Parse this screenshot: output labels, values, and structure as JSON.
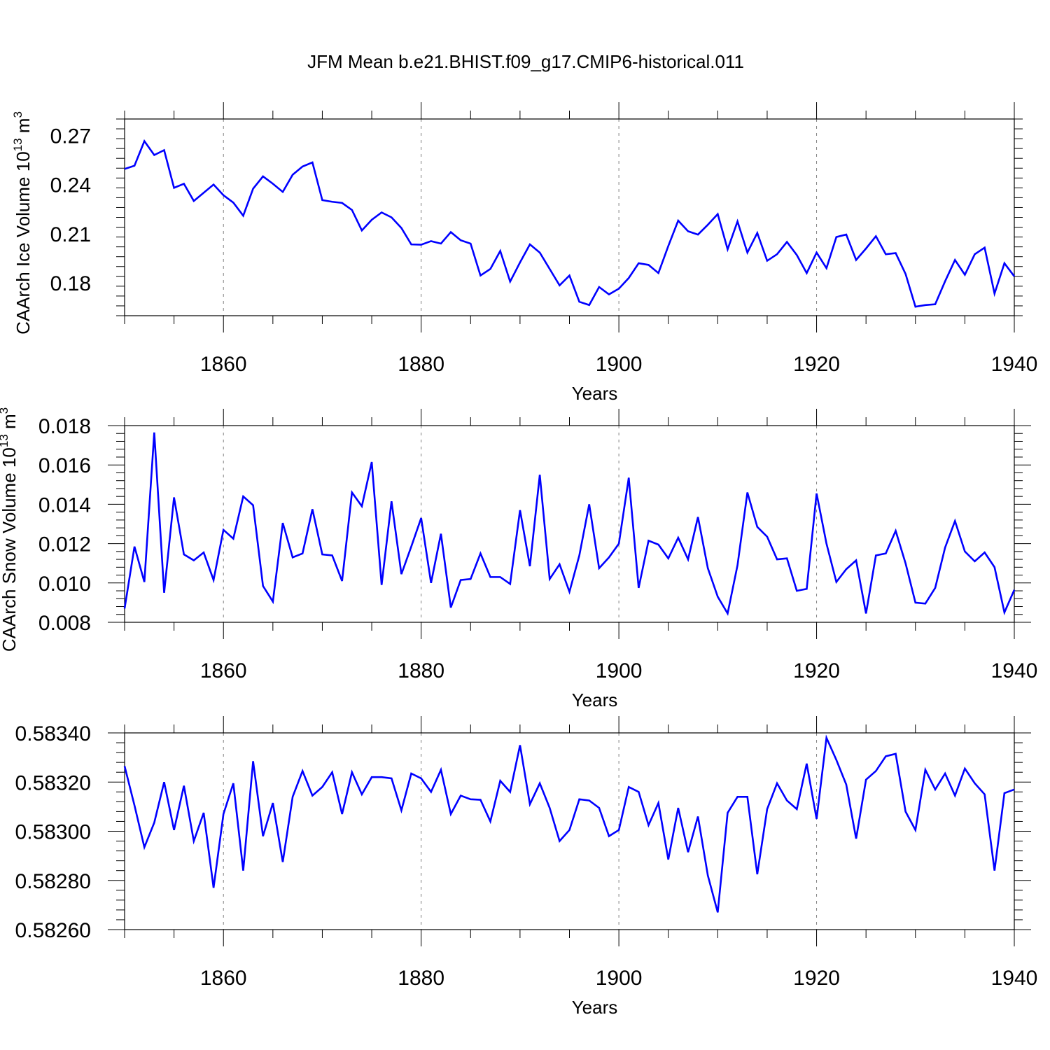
{
  "title": "JFM Mean b.e21.BHIST.f09_g17.CMIP6-historical.011",
  "colors": {
    "series": "#0000ff",
    "axis": "#000000",
    "grid": "#808080"
  },
  "chart_data": [
    {
      "type": "line",
      "name": "ice-volume",
      "xlabel": "Years",
      "ylabel": "CAArch Ice Volume 10",
      "ylabel_exp": "13",
      "ylabel_unit": " m",
      "ylabel_unit_exp": "3",
      "xlim": [
        1850,
        1940
      ],
      "ylim": [
        0.16,
        0.28
      ],
      "xticks": [
        1860,
        1880,
        1900,
        1920,
        1940
      ],
      "xtick_labels": [
        "1860",
        "1880",
        "1900",
        "1920",
        "1940"
      ],
      "yticks": [
        0.18,
        0.21,
        0.24,
        0.27
      ],
      "ytick_labels": [
        "0.18",
        "0.21",
        "0.24",
        "0.27"
      ],
      "grid": "vertical dashed at major x ticks",
      "x_start": 1850,
      "values": [
        0.2495,
        0.2515,
        0.2665,
        0.258,
        0.261,
        0.238,
        0.2405,
        0.23,
        0.235,
        0.24,
        0.2335,
        0.229,
        0.221,
        0.2375,
        0.245,
        0.2405,
        0.2355,
        0.246,
        0.251,
        0.2535,
        0.2305,
        0.2295,
        0.2288,
        0.2245,
        0.212,
        0.2185,
        0.223,
        0.22,
        0.2135,
        0.2035,
        0.2033,
        0.2055,
        0.204,
        0.211,
        0.206,
        0.204,
        0.1845,
        0.1885,
        0.1995,
        0.1808,
        0.1925,
        0.2035,
        0.1985,
        0.1885,
        0.1785,
        0.1845,
        0.1685,
        0.1665,
        0.1775,
        0.173,
        0.1765,
        0.183,
        0.192,
        0.191,
        0.186,
        0.2025,
        0.218,
        0.2115,
        0.2095,
        0.2155,
        0.222,
        0.2005,
        0.2175,
        0.1985,
        0.2105,
        0.1935,
        0.1975,
        0.205,
        0.197,
        0.186,
        0.1985,
        0.189,
        0.208,
        0.2095,
        0.194,
        0.201,
        0.2085,
        0.1975,
        0.1982,
        0.1855,
        0.1655,
        0.1665,
        0.167,
        0.181,
        0.194,
        0.185,
        0.1975,
        0.2015,
        0.1735,
        0.192,
        0.184
      ]
    },
    {
      "type": "line",
      "name": "snow-volume",
      "xlabel": "Years",
      "ylabel": "CAArch Snow Volume 10",
      "ylabel_exp": "13",
      "ylabel_unit": " m",
      "ylabel_unit_exp": "3",
      "xlim": [
        1850,
        1940
      ],
      "ylim": [
        0.008,
        0.018
      ],
      "xticks": [
        1860,
        1880,
        1900,
        1920,
        1940
      ],
      "xtick_labels": [
        "1860",
        "1880",
        "1900",
        "1920",
        "1940"
      ],
      "yticks": [
        0.008,
        0.01,
        0.012,
        0.014,
        0.016,
        0.018
      ],
      "ytick_labels": [
        "0.008",
        "0.010",
        "0.012",
        "0.014",
        "0.016",
        "0.018"
      ],
      "grid": "vertical dashed at major x ticks",
      "x_start": 1850,
      "values": [
        0.0087,
        0.01185,
        0.01005,
        0.01765,
        0.0095,
        0.01435,
        0.01145,
        0.01115,
        0.01155,
        0.01015,
        0.0127,
        0.01225,
        0.0144,
        0.01395,
        0.00985,
        0.00905,
        0.01305,
        0.0113,
        0.0115,
        0.01375,
        0.01145,
        0.0114,
        0.0101,
        0.0146,
        0.0139,
        0.01615,
        0.0099,
        0.01415,
        0.01045,
        0.01185,
        0.0133,
        0.01,
        0.0125,
        0.00875,
        0.01015,
        0.0102,
        0.0115,
        0.0103,
        0.0103,
        0.00995,
        0.0137,
        0.01085,
        0.0155,
        0.0102,
        0.01095,
        0.00955,
        0.0114,
        0.014,
        0.01075,
        0.0113,
        0.012,
        0.01535,
        0.00975,
        0.01215,
        0.01195,
        0.01125,
        0.0123,
        0.0112,
        0.01335,
        0.01075,
        0.0093,
        0.00845,
        0.0109,
        0.0146,
        0.01285,
        0.01235,
        0.0112,
        0.01125,
        0.0096,
        0.0097,
        0.01455,
        0.012,
        0.01005,
        0.0107,
        0.01115,
        0.00845,
        0.0114,
        0.0115,
        0.01265,
        0.011,
        0.009,
        0.00895,
        0.00975,
        0.0118,
        0.01315,
        0.0116,
        0.0111,
        0.01155,
        0.0108,
        0.0085,
        0.00965
      ]
    },
    {
      "type": "line",
      "name": "third-panel",
      "xlabel": "Years",
      "ylabel": "",
      "xlim": [
        1850,
        1940
      ],
      "ylim": [
        0.5826,
        0.5834
      ],
      "xticks": [
        1860,
        1880,
        1900,
        1920,
        1940
      ],
      "xtick_labels": [
        "1860",
        "1880",
        "1900",
        "1920",
        "1940"
      ],
      "yticks": [
        0.5826,
        0.5828,
        0.583,
        0.5832,
        0.5834
      ],
      "ytick_labels": [
        "0.58260",
        "0.58280",
        "0.58300",
        "0.58320",
        "0.58340"
      ],
      "grid": "vertical dashed at major x ticks",
      "x_start": 1850,
      "values": [
        0.583265,
        0.583105,
        0.582935,
        0.583035,
        0.5832,
        0.583005,
        0.583185,
        0.58296,
        0.583075,
        0.58277,
        0.58307,
        0.583195,
        0.58284,
        0.583285,
        0.58298,
        0.583115,
        0.582875,
        0.58314,
        0.583245,
        0.583145,
        0.58318,
        0.58324,
        0.58307,
        0.58324,
        0.58315,
        0.58322,
        0.58322,
        0.583215,
        0.583085,
        0.583235,
        0.583215,
        0.58316,
        0.58325,
        0.58307,
        0.583145,
        0.58313,
        0.583128,
        0.58304,
        0.583205,
        0.58316,
        0.58335,
        0.58311,
        0.583195,
        0.583095,
        0.58296,
        0.583005,
        0.58313,
        0.583125,
        0.583095,
        0.58298,
        0.583005,
        0.58318,
        0.58316,
        0.583025,
        0.583115,
        0.582885,
        0.583095,
        0.582915,
        0.58306,
        0.58282,
        0.58267,
        0.583075,
        0.58314,
        0.58314,
        0.582825,
        0.58309,
        0.583195,
        0.583125,
        0.58309,
        0.583275,
        0.58305,
        0.58338,
        0.58329,
        0.58319,
        0.58297,
        0.58321,
        0.583245,
        0.583305,
        0.583315,
        0.58308,
        0.583005,
        0.58325,
        0.58317,
        0.583235,
        0.583145,
        0.583255,
        0.583195,
        0.58315,
        0.58284,
        0.583155,
        0.58317
      ]
    }
  ]
}
